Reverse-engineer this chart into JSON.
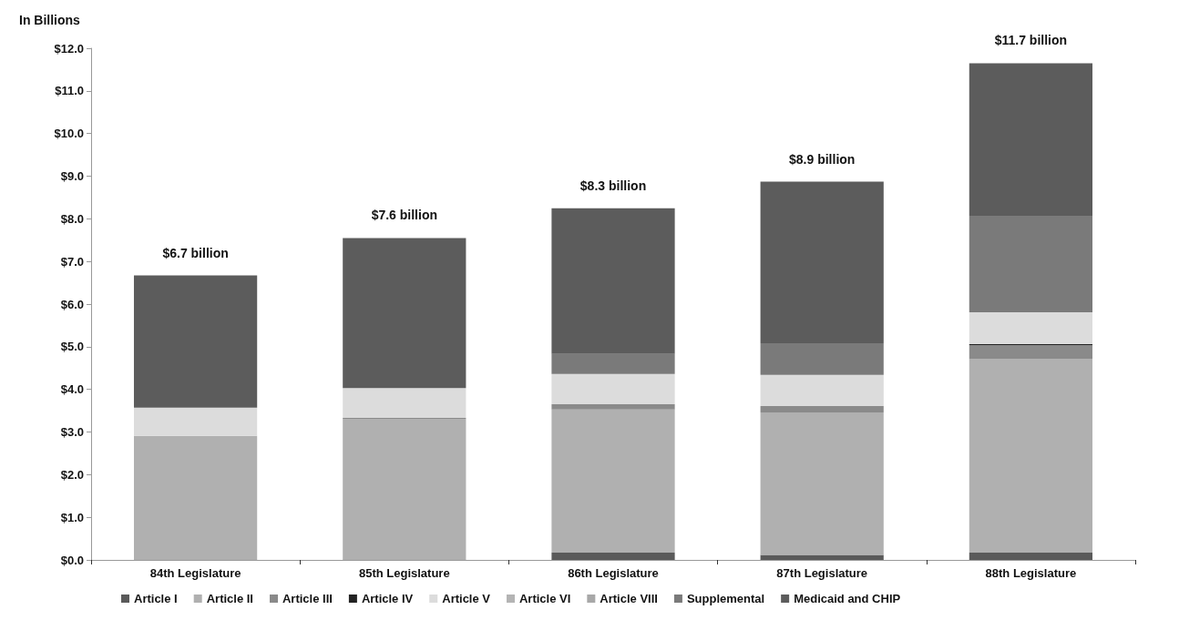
{
  "chart_data": {
    "type": "bar",
    "stacked": true,
    "ylabel": "In Billions",
    "categories": [
      "84th Legislature",
      "85th Legislature",
      "86th Legislature",
      "87th Legislature",
      "88th Legislature"
    ],
    "series": [
      {
        "name": "Article I",
        "color": "#5a5a5a",
        "values": [
          null,
          null,
          0.17,
          0.12,
          0.17
        ]
      },
      {
        "name": "Article II",
        "color": "#b0b0b0",
        "values": [
          2.91,
          3.31,
          3.36,
          3.34,
          4.54
        ]
      },
      {
        "name": "Article III",
        "color": "#8a8a8a",
        "values": [
          null,
          0.02,
          0.12,
          0.15,
          0.33
        ]
      },
      {
        "name": "Article IV",
        "color": "#222222",
        "values": [
          0,
          0,
          0,
          0,
          0.02
        ]
      },
      {
        "name": "Article V",
        "color": "#dcdcdc",
        "values": [
          0.66,
          0.7,
          0.71,
          0.73,
          0.75
        ]
      },
      {
        "name": "Article VI",
        "color": "#b4b4b4",
        "values": [
          0,
          0,
          0,
          0,
          0
        ]
      },
      {
        "name": "Article VIII",
        "color": "#a8a8a8",
        "values": [
          0,
          0,
          0,
          0,
          0
        ]
      },
      {
        "name": "Supplemental",
        "color": "#7a7a7a",
        "values": [
          0,
          0,
          0.47,
          0.74,
          2.26
        ]
      },
      {
        "name": "Medicaid and CHIP",
        "color": "#5c5c5c",
        "values": [
          3.1,
          3.52,
          3.42,
          3.79,
          3.58
        ]
      }
    ],
    "totals": [
      "$6.7 billion",
      "$7.6 billion",
      "$8.3 billion",
      "$8.9 billion",
      "$11.7 billion"
    ],
    "ylim": [
      0,
      12
    ],
    "yticks": [
      {
        "value": 0,
        "label": "$0.0"
      },
      {
        "value": 1,
        "label": "$1.0"
      },
      {
        "value": 2,
        "label": "$2.0"
      },
      {
        "value": 3,
        "label": "$3.0"
      },
      {
        "value": 4,
        "label": "$4.0"
      },
      {
        "value": 5,
        "label": "$5.0"
      },
      {
        "value": 6,
        "label": "$6.0"
      },
      {
        "value": 7,
        "label": "$7.0"
      },
      {
        "value": 8,
        "label": "$8.0"
      },
      {
        "value": 9,
        "label": "$9.0"
      },
      {
        "value": 10,
        "label": "$10.0"
      },
      {
        "value": 11,
        "label": "$11.0"
      },
      {
        "value": 12,
        "label": "$12.0"
      }
    ],
    "grid": false,
    "legend": "bottom"
  }
}
